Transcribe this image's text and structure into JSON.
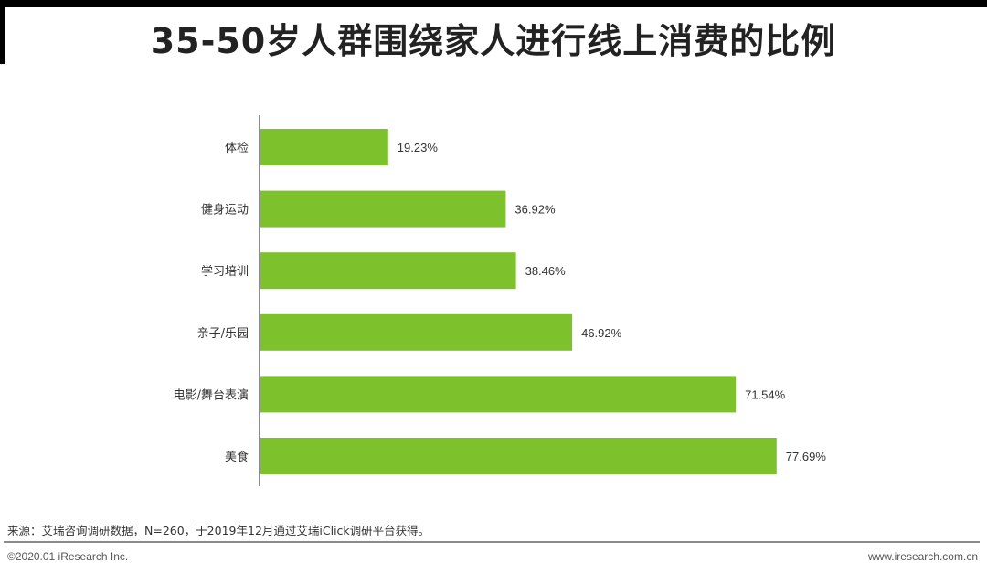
{
  "title": "35-50岁人群围绕家人进行线上消费的比例",
  "chart_data": {
    "type": "bar",
    "orientation": "horizontal",
    "categories": [
      "体检",
      "健身运动",
      "学习培训",
      "亲子/乐园",
      "电影/舞台表演",
      "美食"
    ],
    "values": [
      19.23,
      36.92,
      38.46,
      46.92,
      71.54,
      77.69
    ],
    "value_labels": [
      "19.23%",
      "36.92%",
      "38.46%",
      "46.92%",
      "71.54%",
      "77.69%"
    ],
    "unit": "%",
    "xlim": [
      0,
      100
    ],
    "grid": false,
    "legend": "none",
    "bar_color": "#7dc12d"
  },
  "footer": {
    "source": "来源：艾瑞咨询调研数据，N=260，于2019年12月通过艾瑞iClick调研平台获得。",
    "copyright": "©2020.01 iResearch Inc.",
    "website": "www.iresearch.com.cn"
  }
}
